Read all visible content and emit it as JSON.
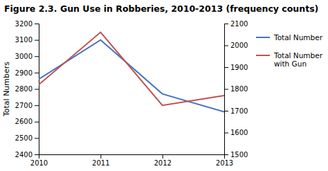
{
  "chart_data": {
    "type": "line",
    "title": "Figure 2.3. Gun Use in Robberies, 2010-2013 (frequency counts)",
    "x": [
      2010,
      2011,
      2012,
      2013
    ],
    "xlim": [
      2010,
      2013
    ],
    "xticks": [
      2010,
      2011,
      2012,
      2013
    ],
    "ylabel": "Total Numbers",
    "ylim": [
      2400,
      3200
    ],
    "yticks": [
      2400,
      2500,
      2600,
      2700,
      2800,
      2900,
      3000,
      3100,
      3200
    ],
    "y2lim": [
      1500,
      2100
    ],
    "y2ticks": [
      1500,
      1600,
      1700,
      1800,
      1900,
      2000,
      2100
    ],
    "series": [
      {
        "name": "Total Number",
        "color": "#4472C4",
        "values": [
          2860,
          3100,
          2770,
          2660
        ]
      },
      {
        "name": "Total Number\nwith Gun",
        "color": "#C0504D",
        "values": [
          1820,
          2060,
          1725,
          1770
        ],
        "axis": "y2"
      }
    ],
    "legend": "right",
    "grid": false
  }
}
